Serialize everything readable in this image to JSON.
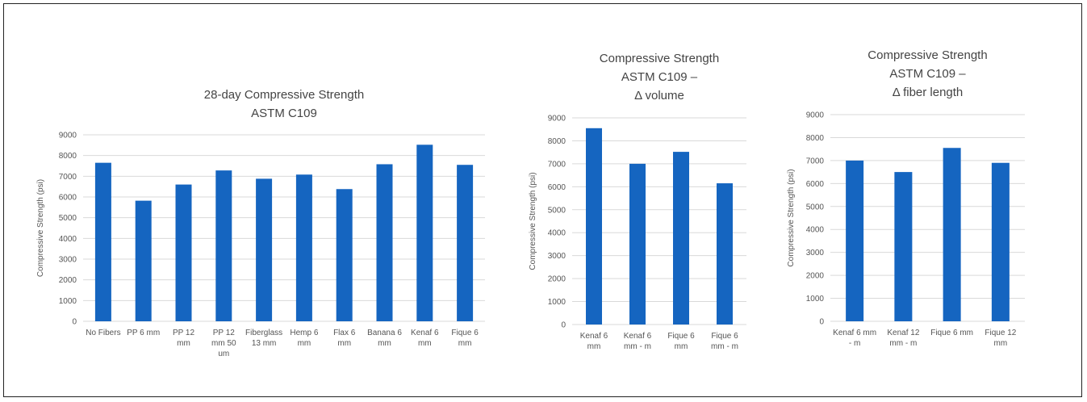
{
  "colors": {
    "bar": "#1565c0",
    "grid": "#d9d9d9",
    "text": "#444444"
  },
  "chart_data": [
    {
      "type": "bar",
      "title": [
        "28-day Compressive Strength",
        "ASTM C109"
      ],
      "ylabel": "Compressive Strength (psi)",
      "xlabel": "",
      "ylim": [
        0,
        9000
      ],
      "yticks": [
        0,
        1000,
        2000,
        3000,
        4000,
        5000,
        6000,
        7000,
        8000,
        9000
      ],
      "grid": true,
      "categories": [
        [
          "No Fibers"
        ],
        [
          "PP 6 mm"
        ],
        [
          "PP 12",
          "mm"
        ],
        [
          "PP 12",
          "mm 50",
          "um"
        ],
        [
          "Fiberglass",
          "13 mm"
        ],
        [
          "Hemp 6",
          "mm"
        ],
        [
          "Flax 6",
          "mm"
        ],
        [
          "Banana 6",
          "mm"
        ],
        [
          "Kenaf 6",
          "mm"
        ],
        [
          "Fique 6",
          "mm"
        ]
      ],
      "values": [
        7650,
        5820,
        6600,
        7280,
        6880,
        7080,
        6380,
        7580,
        8520,
        7550
      ]
    },
    {
      "type": "bar",
      "title": [
        "Compressive Strength",
        "ASTM C109 –",
        "Δ volume"
      ],
      "ylabel": "Compressive Strength (psi)",
      "xlabel": "",
      "ylim": [
        0,
        9000
      ],
      "yticks": [
        0,
        1000,
        2000,
        3000,
        4000,
        5000,
        6000,
        7000,
        8000,
        9000
      ],
      "grid": true,
      "categories": [
        [
          "Kenaf 6",
          "mm"
        ],
        [
          "Kenaf 6",
          "mm - m"
        ],
        [
          "Fique 6",
          "mm"
        ],
        [
          "Fique 6",
          "mm - m"
        ]
      ],
      "values": [
        8550,
        7000,
        7520,
        6150
      ]
    },
    {
      "type": "bar",
      "title": [
        "Compressive Strength",
        "ASTM C109 –",
        "Δ fiber length"
      ],
      "ylabel": "Compressive Strength (psi)",
      "xlabel": "",
      "ylim": [
        0,
        9000
      ],
      "yticks": [
        0,
        1000,
        2000,
        3000,
        4000,
        5000,
        6000,
        7000,
        8000,
        9000
      ],
      "grid": true,
      "categories": [
        [
          "Kenaf 6 mm",
          "- m"
        ],
        [
          "Kenaf 12",
          "mm - m"
        ],
        [
          "Fique 6 mm"
        ],
        [
          "Fique 12",
          "mm"
        ]
      ],
      "values": [
        7000,
        6500,
        7550,
        6900
      ]
    }
  ]
}
